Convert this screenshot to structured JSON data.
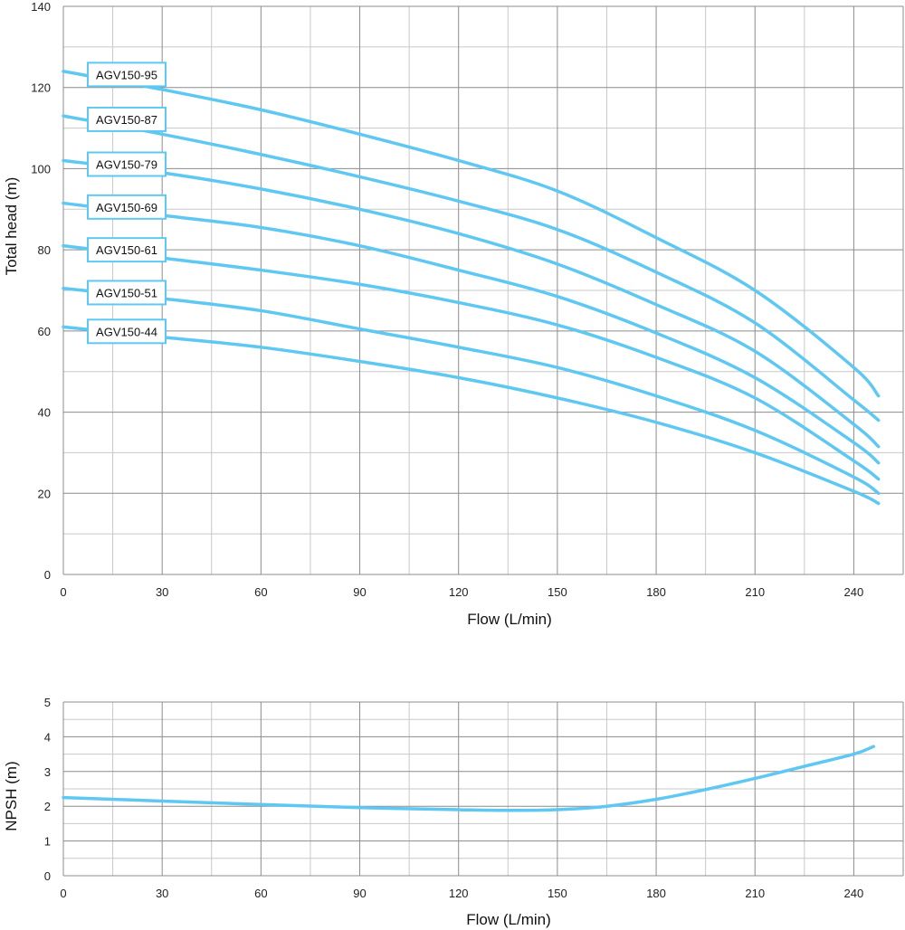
{
  "colors": {
    "curve": "#5ec8f2",
    "grid_major": "#8c8c8c",
    "grid_minor": "#c8c8c8",
    "label_border": "#5ec8f2"
  },
  "chart_data": [
    {
      "type": "line",
      "title": "",
      "xlabel": "Flow (L/min)",
      "ylabel": "Total head (m)",
      "xlim": [
        0,
        255
      ],
      "ylim": [
        0,
        140
      ],
      "x_ticks": [
        0,
        30,
        60,
        90,
        120,
        150,
        180,
        210,
        240
      ],
      "y_ticks": [
        0,
        20,
        40,
        60,
        80,
        100,
        120,
        140
      ],
      "grid": true,
      "series": [
        {
          "name": "AGV150-95",
          "x": [
            0,
            30,
            60,
            90,
            120,
            150,
            180,
            210,
            240,
            247.5
          ],
          "y": [
            124,
            119.5,
            114.5,
            108.5,
            102,
            94.5,
            83,
            70,
            51,
            44
          ]
        },
        {
          "name": "AGV150-87",
          "x": [
            0,
            30,
            60,
            90,
            120,
            150,
            180,
            210,
            240,
            247.5
          ],
          "y": [
            113,
            108.5,
            103.5,
            98,
            92,
            85,
            74.5,
            62,
            43,
            38
          ]
        },
        {
          "name": "AGV150-79",
          "x": [
            0,
            30,
            60,
            90,
            120,
            150,
            180,
            210,
            240,
            247.5
          ],
          "y": [
            102,
            99,
            95,
            90,
            84,
            76.5,
            66.5,
            55,
            37,
            31.5
          ]
        },
        {
          "name": "AGV150-69",
          "x": [
            0,
            30,
            60,
            90,
            120,
            150,
            180,
            210,
            240,
            247.5
          ],
          "y": [
            91.5,
            88.5,
            85.5,
            81,
            75,
            68.5,
            59.5,
            48.5,
            32.5,
            27.5
          ]
        },
        {
          "name": "AGV150-61",
          "x": [
            0,
            30,
            60,
            90,
            120,
            150,
            180,
            210,
            240,
            247.5
          ],
          "y": [
            81,
            78,
            75,
            71.5,
            67,
            61.5,
            53.5,
            43.5,
            28,
            23.5
          ]
        },
        {
          "name": "AGV150-51",
          "x": [
            0,
            30,
            60,
            90,
            120,
            150,
            180,
            210,
            240,
            247.5
          ],
          "y": [
            70.5,
            68,
            65,
            60.5,
            56,
            51,
            44,
            35.5,
            24,
            20
          ]
        },
        {
          "name": "AGV150-44",
          "x": [
            0,
            30,
            60,
            90,
            120,
            150,
            180,
            210,
            240,
            247.5
          ],
          "y": [
            61,
            58.5,
            56,
            52.5,
            48.5,
            43.5,
            37.5,
            30,
            20.5,
            17.5
          ]
        }
      ]
    },
    {
      "type": "line",
      "title": "",
      "xlabel": "Flow (L/min)",
      "ylabel": "NPSH (m)",
      "xlim": [
        0,
        255
      ],
      "ylim": [
        0,
        5
      ],
      "x_ticks": [
        0,
        30,
        60,
        90,
        120,
        150,
        180,
        210,
        240
      ],
      "y_ticks": [
        0,
        1,
        2,
        3,
        4,
        5
      ],
      "grid": true,
      "series": [
        {
          "x": [
            0,
            30,
            60,
            90,
            120,
            135,
            150,
            165,
            180,
            195,
            210,
            225,
            240,
            246
          ],
          "y": [
            2.25,
            2.15,
            2.05,
            1.96,
            1.9,
            1.88,
            1.9,
            2.0,
            2.2,
            2.48,
            2.8,
            3.15,
            3.5,
            3.72
          ]
        }
      ]
    }
  ]
}
